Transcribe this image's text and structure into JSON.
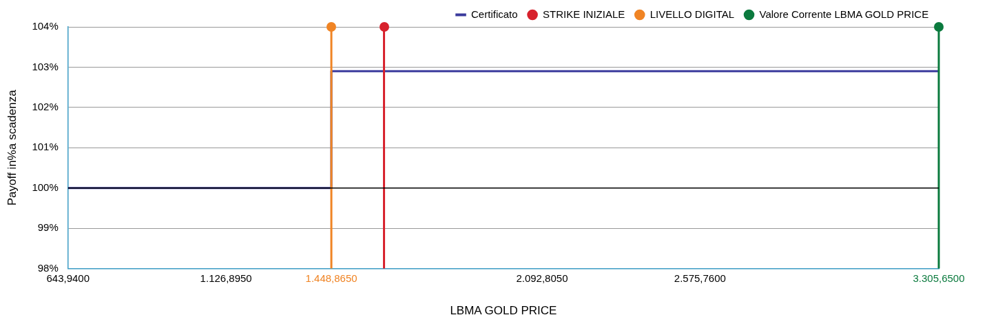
{
  "chart_data": {
    "type": "line",
    "xlabel": "LBMA GOLD PRICE",
    "ylabel": "Payoff in%a scadenza",
    "xlim": [
      643.94,
      3305.65
    ],
    "xticks": [
      {
        "value": 643.94,
        "label": "643,9400"
      },
      {
        "value": 1126.895,
        "label": "1.126,8950"
      },
      {
        "value": 1448.865,
        "label": "1.448,8650"
      },
      {
        "value": 2092.805,
        "label": "2.092,8050"
      },
      {
        "value": 2575.76,
        "label": "2.575,7600"
      },
      {
        "value": 3305.65,
        "label": "3.305,6500"
      }
    ],
    "ylim": [
      98,
      104
    ],
    "yticks": [
      {
        "value": 98,
        "label": "98%"
      },
      {
        "value": 99,
        "label": "99%"
      },
      {
        "value": 100,
        "label": "100%"
      },
      {
        "value": 101,
        "label": "101%"
      },
      {
        "value": 102,
        "label": "102%"
      },
      {
        "value": 103,
        "label": "103%"
      },
      {
        "value": 104,
        "label": "104%"
      }
    ],
    "series": [
      {
        "name": "Certificato",
        "color": "#3a3a9c",
        "x": [
          643.94,
          1448.865,
          1448.865,
          3305.65
        ],
        "values": [
          100,
          100,
          102.9,
          102.9
        ]
      }
    ],
    "ref_lines": [
      {
        "axis": "x",
        "value": 1609.85,
        "label": "STRIKE INIZIALE",
        "color": "#d7212c"
      },
      {
        "axis": "x",
        "value": 1448.865,
        "label": "LIVELLO DIGITAL",
        "color": "#f08424"
      },
      {
        "axis": "x",
        "value": 3305.65,
        "label": "Valore Corrente LBMA GOLD PRICE",
        "color": "#0b7a3e"
      },
      {
        "axis": "y",
        "value": 100,
        "color": "#000000"
      }
    ],
    "grid": "y",
    "legend": "top right",
    "marker": "none",
    "line_style": "solid"
  }
}
